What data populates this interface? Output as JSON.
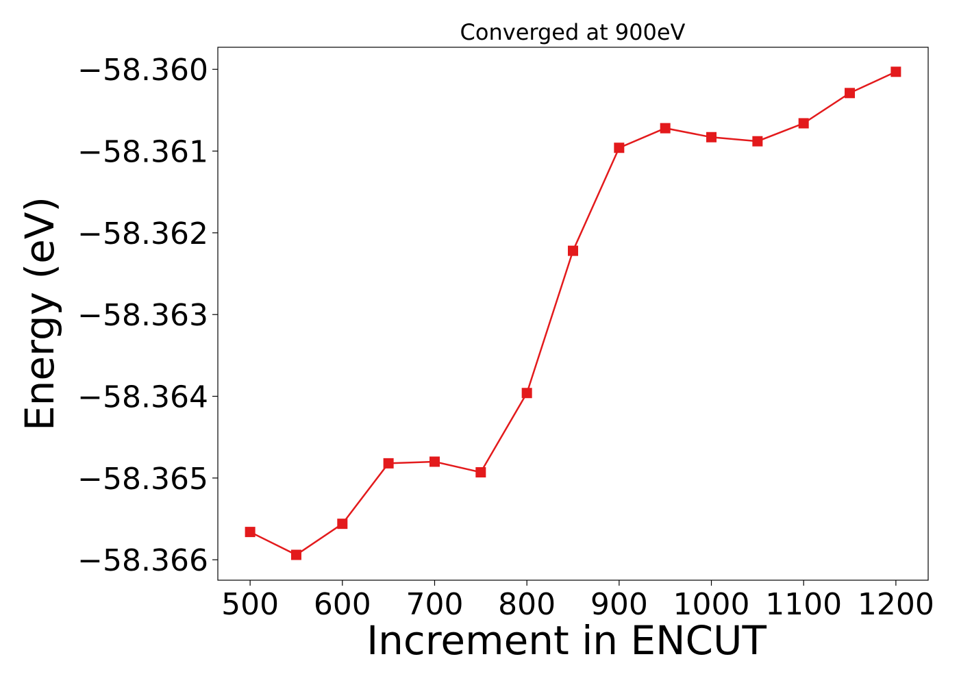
{
  "chart_data": {
    "type": "line",
    "title": "Converged at 900eV",
    "xlabel": "Increment in ENCUT",
    "ylabel": "Energy (eV)",
    "x": [
      500,
      550,
      600,
      650,
      700,
      750,
      800,
      850,
      900,
      950,
      1000,
      1050,
      1100,
      1150,
      1200
    ],
    "series": [
      {
        "values": [
          -58.36566,
          -58.36594,
          -58.36556,
          -58.36482,
          -58.3648,
          -58.36493,
          -58.36396,
          -58.36222,
          -58.36096,
          -58.36072,
          -58.36083,
          -58.36088,
          -58.36066,
          -58.36029,
          -58.36003
        ],
        "color": "#e31a1c",
        "marker": "square"
      }
    ],
    "xticks": [
      "500",
      "600",
      "700",
      "800",
      "900",
      "1000",
      "1100",
      "1200"
    ],
    "yticks": [
      "−58.360",
      "−58.361",
      "−58.362",
      "−58.363",
      "−58.364",
      "−58.365",
      "−58.366"
    ],
    "xlim": [
      465,
      1235
    ],
    "ylim": [
      -58.36625,
      -58.35973
    ],
    "grid": false
  }
}
